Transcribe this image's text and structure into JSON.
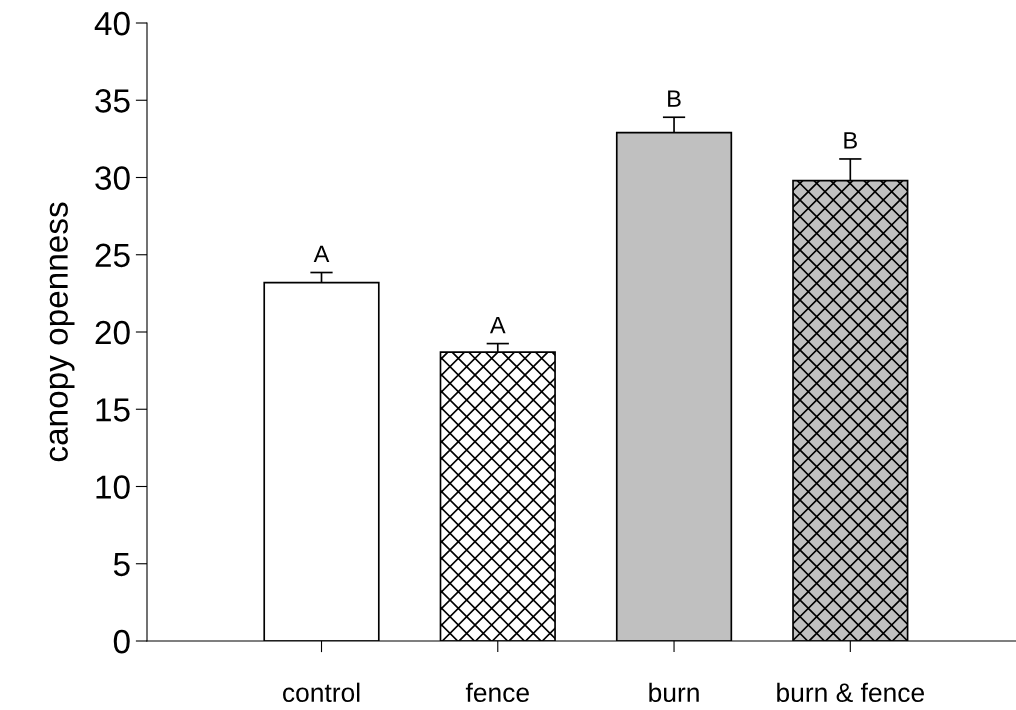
{
  "chart_data": {
    "type": "bar",
    "ylabel": "canopy openness",
    "categories": [
      "control",
      "fence",
      "burn",
      "burn & fence"
    ],
    "values": [
      23.2,
      18.7,
      32.9,
      29.8
    ],
    "errors": [
      0.65,
      0.55,
      1.0,
      1.4
    ],
    "colors": [
      "#ffffff",
      "#ffffff",
      "#c0c0c0",
      "#c0c0c0"
    ],
    "ylim": [
      0,
      40
    ],
    "yticks": [
      0,
      5,
      10,
      15,
      20,
      25,
      30,
      35,
      40
    ],
    "annotations": [
      "A",
      "A",
      "B",
      "B"
    ],
    "grid": false,
    "legend": false
  }
}
